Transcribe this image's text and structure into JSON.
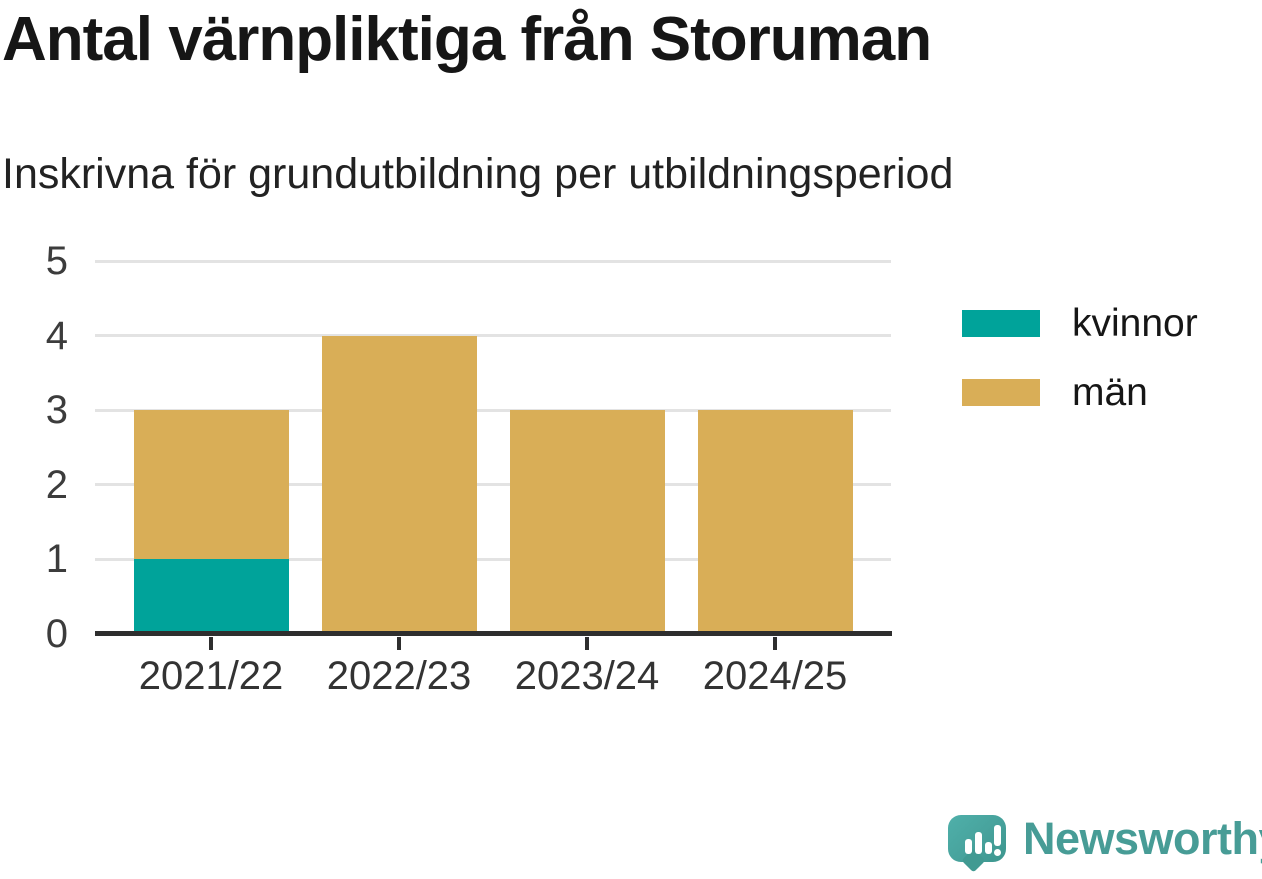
{
  "title": "Antal värnpliktiga från Storuman",
  "subtitle": "Inskrivna för grundutbildning per utbildningsperiod",
  "chart_data": {
    "type": "bar",
    "stacked": true,
    "categories": [
      "2021/22",
      "2022/23",
      "2023/24",
      "2024/25"
    ],
    "series": [
      {
        "name": "kvinnor",
        "color": "#00a39a",
        "values": [
          1,
          0,
          0,
          0
        ]
      },
      {
        "name": "män",
        "color": "#d9ae57",
        "values": [
          2,
          4,
          3,
          3
        ]
      }
    ],
    "totals": [
      3,
      4,
      3,
      3
    ],
    "xlabel": "",
    "ylabel": "",
    "ylim": [
      0,
      5
    ],
    "yticks": [
      0,
      1,
      2,
      3,
      4,
      5
    ],
    "grid": true,
    "legend_position": "right"
  },
  "legend": {
    "items": [
      {
        "label": "kvinnor",
        "color": "#00a39a"
      },
      {
        "label": "män",
        "color": "#d9ae57"
      }
    ]
  },
  "colors": {
    "kvinnor": "#00a39a",
    "man": "#d9ae57",
    "gridline": "#e3e3e3",
    "axis": "#2e2e2e",
    "logo_teal": "#479c96"
  },
  "branding": {
    "logo_text": "Newsworthy"
  }
}
